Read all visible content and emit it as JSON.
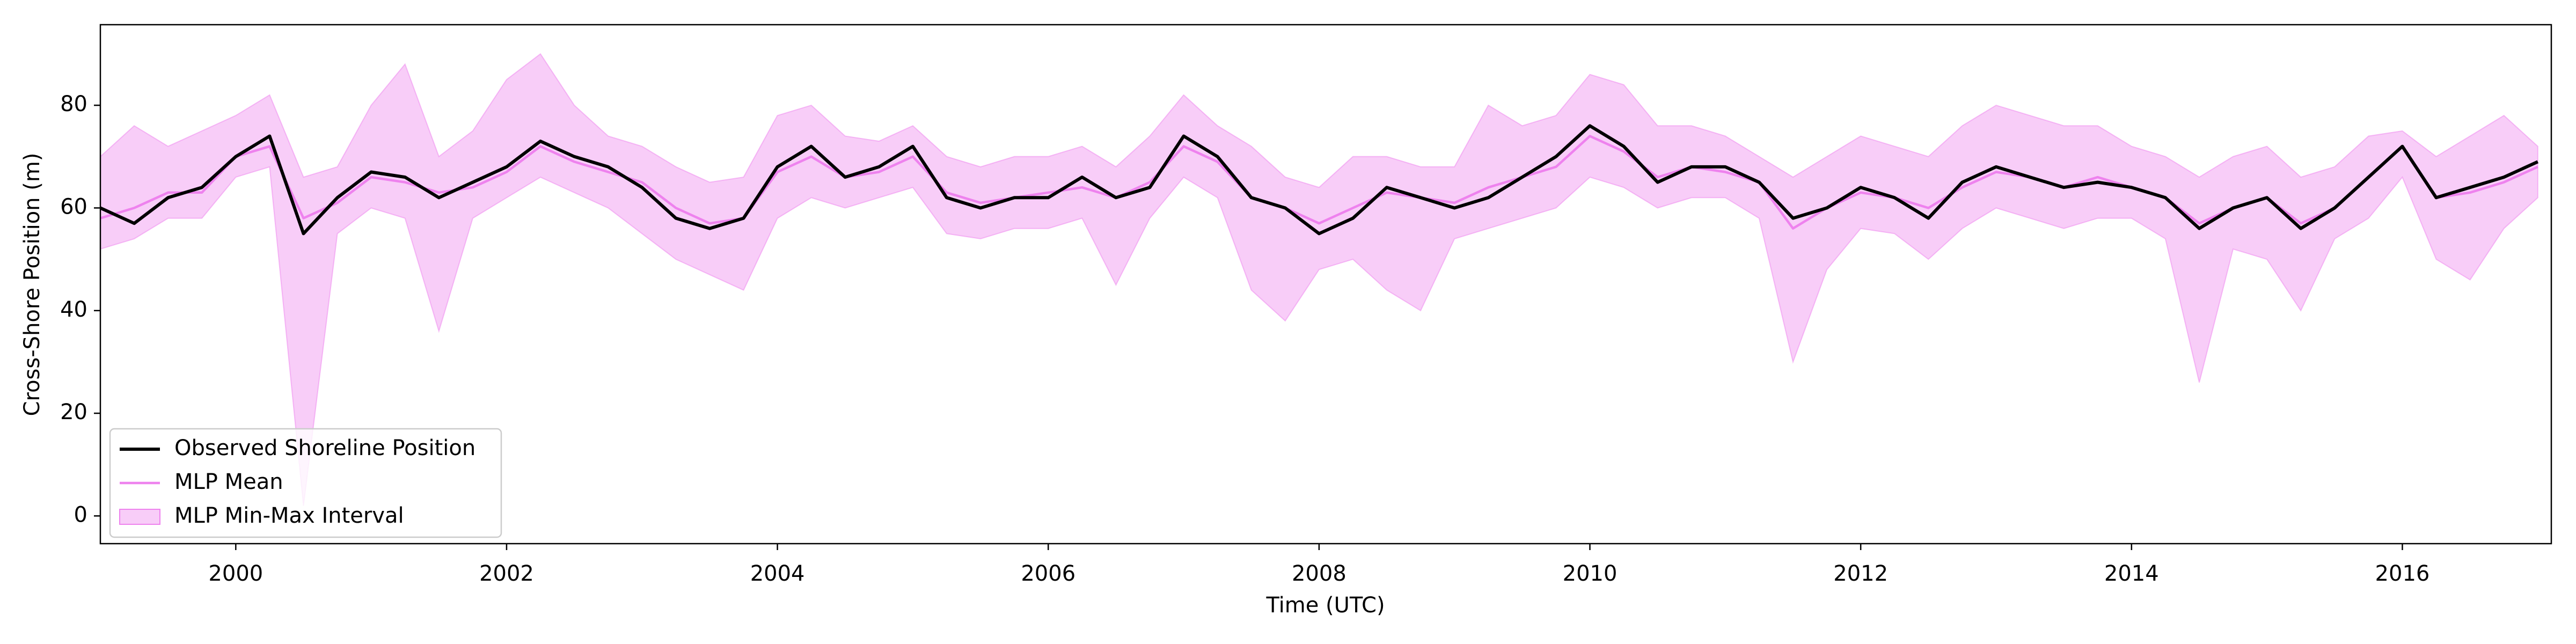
{
  "chart_data": {
    "type": "line",
    "xlabel": "Time (UTC)",
    "ylabel": "Cross-Shore Position (m)",
    "xlim": [
      1999.0,
      2017.1
    ],
    "ylim": [
      -5.4,
      95.7
    ],
    "xticks": [
      2000,
      2002,
      2004,
      2006,
      2008,
      2010,
      2012,
      2014,
      2016
    ],
    "yticks": [
      0,
      20,
      40,
      60,
      80
    ],
    "legend": "lower left",
    "x": [
      1999.0,
      1999.25,
      1999.5,
      1999.75,
      2000.0,
      2000.25,
      2000.5,
      2000.75,
      2001.0,
      2001.25,
      2001.5,
      2001.75,
      2002.0,
      2002.25,
      2002.5,
      2002.75,
      2003.0,
      2003.25,
      2003.5,
      2003.75,
      2004.0,
      2004.25,
      2004.5,
      2004.75,
      2005.0,
      2005.25,
      2005.5,
      2005.75,
      2006.0,
      2006.25,
      2006.5,
      2006.75,
      2007.0,
      2007.25,
      2007.5,
      2007.75,
      2008.0,
      2008.25,
      2008.5,
      2008.75,
      2009.0,
      2009.25,
      2009.5,
      2009.75,
      2010.0,
      2010.25,
      2010.5,
      2010.75,
      2011.0,
      2011.25,
      2011.5,
      2011.75,
      2012.0,
      2012.25,
      2012.5,
      2012.75,
      2013.0,
      2013.25,
      2013.5,
      2013.75,
      2014.0,
      2014.25,
      2014.5,
      2014.75,
      2015.0,
      2015.25,
      2015.5,
      2015.75,
      2016.0,
      2016.25,
      2016.5,
      2016.75,
      2017.0
    ],
    "series": [
      {
        "name": "Observed Shoreline Position",
        "color": "#000000",
        "values": [
          60,
          57,
          62,
          64,
          70,
          74,
          55,
          62,
          67,
          66,
          62,
          65,
          68,
          73,
          70,
          68,
          64,
          58,
          56,
          58,
          68,
          72,
          66,
          68,
          72,
          62,
          60,
          62,
          62,
          66,
          62,
          64,
          74,
          70,
          62,
          60,
          55,
          58,
          64,
          62,
          60,
          62,
          66,
          70,
          76,
          72,
          65,
          68,
          68,
          65,
          58,
          60,
          64,
          62,
          58,
          65,
          68,
          66,
          64,
          65,
          64,
          62,
          56,
          60,
          62,
          56,
          60,
          66,
          72,
          62,
          64,
          66,
          69
        ]
      },
      {
        "name": "MLP Mean",
        "color": "#ee82ee",
        "values": [
          58,
          60,
          63,
          63,
          70,
          72,
          58,
          61,
          66,
          65,
          63,
          64,
          67,
          72,
          69,
          67,
          65,
          60,
          57,
          58,
          67,
          70,
          66,
          67,
          70,
          63,
          61,
          62,
          63,
          64,
          62,
          65,
          72,
          69,
          62,
          60,
          57,
          60,
          63,
          62,
          61,
          64,
          66,
          68,
          74,
          71,
          66,
          68,
          67,
          65,
          56,
          60,
          63,
          62,
          60,
          64,
          67,
          66,
          64,
          66,
          64,
          62,
          57,
          60,
          62,
          57,
          60,
          66,
          72,
          62,
          63,
          65,
          68
        ]
      },
      {
        "name": "MLP Min-Max Interval",
        "color": "#ee82ee",
        "low": [
          52,
          54,
          58,
          58,
          66,
          68,
          2,
          55,
          60,
          58,
          36,
          58,
          62,
          66,
          63,
          60,
          55,
          50,
          47,
          44,
          58,
          62,
          60,
          62,
          64,
          55,
          54,
          56,
          56,
          58,
          45,
          58,
          66,
          62,
          44,
          38,
          48,
          50,
          44,
          40,
          54,
          56,
          58,
          60,
          66,
          64,
          60,
          62,
          62,
          58,
          30,
          48,
          56,
          55,
          50,
          56,
          60,
          58,
          56,
          58,
          58,
          54,
          26,
          52,
          50,
          40,
          54,
          58,
          66,
          50,
          46,
          56,
          62
        ],
        "high": [
          70,
          76,
          72,
          75,
          78,
          82,
          66,
          68,
          80,
          88,
          70,
          75,
          85,
          90,
          80,
          74,
          72,
          68,
          65,
          66,
          78,
          80,
          74,
          73,
          76,
          70,
          68,
          70,
          70,
          72,
          68,
          74,
          82,
          76,
          72,
          66,
          64,
          70,
          70,
          68,
          68,
          80,
          76,
          78,
          86,
          84,
          76,
          76,
          74,
          70,
          66,
          70,
          74,
          72,
          70,
          76,
          80,
          78,
          76,
          76,
          72,
          70,
          66,
          70,
          72,
          66,
          68,
          74,
          75,
          70,
          74,
          78,
          72
        ]
      }
    ]
  }
}
